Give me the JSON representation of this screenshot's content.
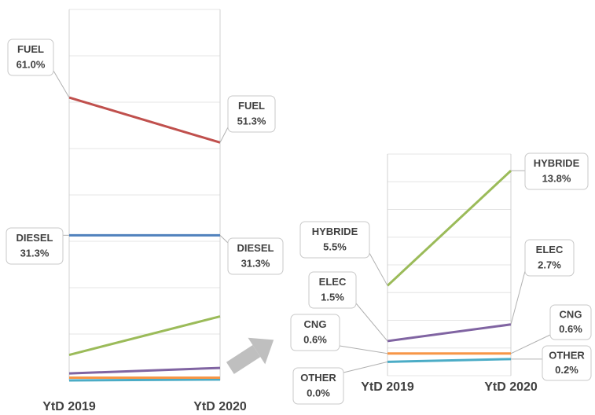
{
  "chart_data": [
    {
      "type": "line",
      "categories": [
        "YtD 2019",
        "YtD 2020"
      ],
      "ylim": [
        0,
        80
      ],
      "yticks": [
        0,
        10,
        20,
        30,
        40,
        50,
        60,
        70,
        80
      ],
      "grid": true,
      "series": [
        {
          "name": "FUEL",
          "color": "#c0504d",
          "values": [
            61.0,
            51.3
          ],
          "value_labels": [
            "61.0%",
            "51.3%"
          ]
        },
        {
          "name": "DIESEL",
          "color": "#4f81bd",
          "values": [
            31.3,
            31.3
          ],
          "value_labels": [
            "31.3%",
            "31.3%"
          ]
        },
        {
          "color": "#9bbb59",
          "values": [
            5.5,
            13.8
          ]
        },
        {
          "color": "#8064a2",
          "values": [
            1.5,
            2.7
          ]
        },
        {
          "color": "#f79646",
          "values": [
            0.6,
            0.6
          ]
        },
        {
          "color": "#4bacc6",
          "values": [
            0.0,
            0.2
          ]
        }
      ]
    },
    {
      "type": "line",
      "categories": [
        "YtD 2019",
        "YtD 2020"
      ],
      "ylim": [
        -1,
        15
      ],
      "yticks": [
        -1,
        1,
        3,
        5,
        7,
        9,
        11,
        13,
        15
      ],
      "grid": true,
      "series": [
        {
          "name": "HYBRIDE",
          "color": "#9bbb59",
          "values": [
            5.5,
            13.8
          ],
          "value_labels": [
            "5.5%",
            "13.8%"
          ]
        },
        {
          "name": "ELEC",
          "color": "#8064a2",
          "values": [
            1.5,
            2.7
          ],
          "value_labels": [
            "1.5%",
            "2.7%"
          ]
        },
        {
          "name": "CNG",
          "color": "#f79646",
          "values": [
            0.6,
            0.6
          ],
          "value_labels": [
            "0.6%",
            "0.6%"
          ]
        },
        {
          "name": "OTHER",
          "color": "#4bacc6",
          "values": [
            0.0,
            0.2
          ],
          "value_labels": [
            "0.0%",
            "0.2%"
          ]
        }
      ]
    }
  ]
}
